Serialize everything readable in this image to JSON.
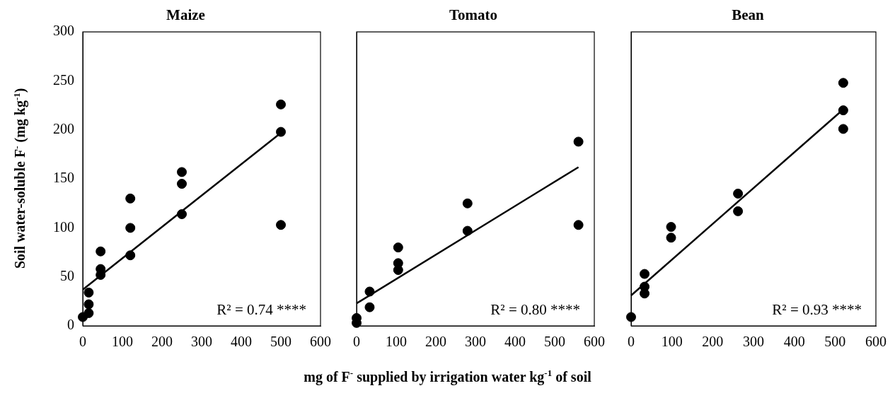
{
  "chart_data": [
    {
      "type": "scatter",
      "title": "Maize",
      "ylabel": "Soil water-soluble  F$^{-}$ (mg kg$^{-1}$)",
      "annotations": [
        "R² = 0.74 ****"
      ],
      "series": [
        {
          "type": "scatter",
          "color": "#000000",
          "marker": "circle",
          "x": [
            0,
            15,
            15,
            15,
            45,
            45,
            45,
            120,
            120,
            120,
            250,
            250,
            250,
            500,
            500,
            500
          ],
          "values": [
            9,
            34,
            22,
            13,
            76,
            58,
            52,
            130,
            100,
            72,
            157,
            145,
            114,
            226,
            198,
            103
          ]
        },
        {
          "type": "line",
          "color": "#000000",
          "marker": "none",
          "line_style": "solid",
          "x": [
            0,
            500
          ],
          "values": [
            37,
            197
          ]
        }
      ],
      "xlim": [
        0,
        600
      ],
      "xticks": [
        0,
        100,
        200,
        300,
        400,
        500,
        600
      ],
      "ylim": [
        0,
        300
      ],
      "yticks": [
        0,
        50,
        100,
        150,
        200,
        250,
        300
      ],
      "grid": false,
      "legend": false
    },
    {
      "type": "scatter",
      "title": "Tomato",
      "xlabel": "mg of F$^{-}$ supplied by irrigation water kg$^{-1}$ of soil",
      "annotations": [
        "R² = 0.80 ****"
      ],
      "series": [
        {
          "type": "scatter",
          "color": "#000000",
          "marker": "circle",
          "x": [
            0,
            0,
            33,
            33,
            105,
            105,
            105,
            280,
            280,
            560,
            560
          ],
          "values": [
            8,
            3,
            35,
            19,
            80,
            64,
            57,
            125,
            97,
            188,
            103
          ]
        },
        {
          "type": "line",
          "color": "#000000",
          "marker": "none",
          "line_style": "solid",
          "x": [
            0,
            560
          ],
          "values": [
            23,
            162
          ]
        }
      ],
      "xlim": [
        0,
        600
      ],
      "xticks": [
        0,
        100,
        200,
        300,
        400,
        500,
        600
      ],
      "ylim": [
        0,
        300
      ],
      "yticks": [
        0,
        50,
        100,
        150,
        200,
        250,
        300
      ],
      "tick_labels": "x",
      "grid": false,
      "legend": false
    },
    {
      "type": "scatter",
      "title": "Bean",
      "annotations": [
        "R² = 0.93 ****"
      ],
      "series": [
        {
          "type": "scatter",
          "color": "#000000",
          "marker": "circle",
          "x": [
            0,
            33,
            33,
            33,
            98,
            98,
            262,
            262,
            520,
            520,
            520
          ],
          "values": [
            9,
            53,
            40,
            33,
            101,
            90,
            135,
            117,
            248,
            220,
            201
          ]
        },
        {
          "type": "line",
          "color": "#000000",
          "marker": "none",
          "line_style": "solid",
          "x": [
            0,
            520
          ],
          "values": [
            31,
            221
          ]
        }
      ],
      "xlim": [
        0,
        600
      ],
      "xticks": [
        0,
        100,
        200,
        300,
        400,
        500,
        600
      ],
      "ylim": [
        0,
        300
      ],
      "yticks": [
        0,
        50,
        100,
        150,
        200,
        250,
        300
      ],
      "tick_labels": "x",
      "grid": false,
      "legend": false
    }
  ]
}
